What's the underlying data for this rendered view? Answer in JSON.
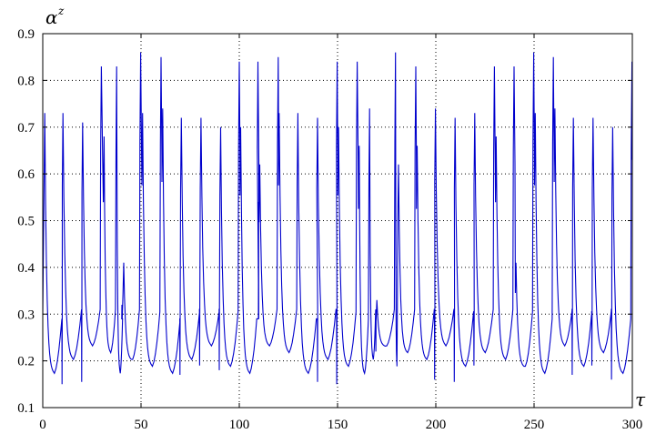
{
  "chart_data": {
    "type": "line",
    "title": "",
    "xlabel": "τ",
    "ylabel": {
      "base": "α",
      "sup": "z"
    },
    "xlim": [
      0,
      300
    ],
    "ylim": [
      0.1,
      0.9
    ],
    "xticks": [
      "0",
      "50",
      "100",
      "150",
      "200",
      "250",
      "300"
    ],
    "yticks": [
      "0.1",
      "0.2",
      "0.3",
      "0.4",
      "0.5",
      "0.6",
      "0.7",
      "0.8",
      "0.9"
    ],
    "grid": true,
    "line_color": "#0000cc",
    "series": [
      {
        "peaks": [
          [
            1,
            0.73
          ],
          [
            10.3,
            0.73
          ],
          [
            20.3,
            0.71
          ],
          [
            29.8,
            0.83
          ],
          [
            31.2,
            0.68
          ],
          [
            37.6,
            0.83
          ],
          [
            41.2,
            0.41
          ],
          [
            49.8,
            0.86
          ],
          [
            50.8,
            0.73
          ],
          [
            60.2,
            0.85
          ],
          [
            61.0,
            0.74
          ],
          [
            70.5,
            0.72
          ],
          [
            80.5,
            0.72
          ],
          [
            90.5,
            0.7
          ],
          [
            100.0,
            0.84
          ],
          [
            100.7,
            0.7
          ],
          [
            109.5,
            0.84
          ],
          [
            110.4,
            0.62
          ],
          [
            119.8,
            0.85
          ],
          [
            120.3,
            0.73
          ],
          [
            129.8,
            0.73
          ],
          [
            139.8,
            0.72
          ],
          [
            149.8,
            0.84
          ],
          [
            150.5,
            0.7
          ],
          [
            160.0,
            0.84
          ],
          [
            161.0,
            0.66
          ],
          [
            166.3,
            0.74
          ],
          [
            170.0,
            0.33
          ],
          [
            179.5,
            0.86
          ],
          [
            181.0,
            0.62
          ],
          [
            189.8,
            0.83
          ],
          [
            190.5,
            0.66
          ],
          [
            199.8,
            0.74
          ],
          [
            209.8,
            0.72
          ],
          [
            219.8,
            0.73
          ],
          [
            229.8,
            0.83
          ],
          [
            230.7,
            0.68
          ],
          [
            239.8,
            0.83
          ],
          [
            240.8,
            0.41
          ],
          [
            249.8,
            0.86
          ],
          [
            250.6,
            0.73
          ],
          [
            259.8,
            0.85
          ],
          [
            260.6,
            0.74
          ],
          [
            270.0,
            0.72
          ],
          [
            280.0,
            0.72
          ],
          [
            290.0,
            0.7
          ],
          [
            299.8,
            0.84
          ]
        ],
        "drops": [
          [
            9.8,
            0.15
          ],
          [
            19.8,
            0.155
          ],
          [
            40.3,
            0.32
          ],
          [
            69.8,
            0.17
          ],
          [
            79.8,
            0.19
          ],
          [
            89.8,
            0.18
          ],
          [
            109.8,
            0.54
          ],
          [
            139.8,
            0.155
          ],
          [
            149.6,
            0.15
          ],
          [
            169.5,
            0.22
          ],
          [
            199.4,
            0.16
          ],
          [
            209.4,
            0.155
          ],
          [
            219.4,
            0.19
          ],
          [
            269.4,
            0.17
          ],
          [
            279.4,
            0.19
          ],
          [
            289.4,
            0.16
          ]
        ]
      }
    ]
  }
}
